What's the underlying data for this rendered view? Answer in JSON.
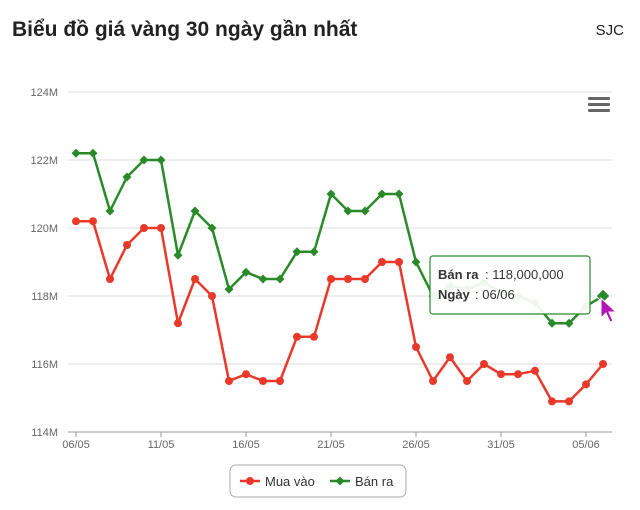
{
  "header": {
    "title": "Biểu đồ giá vàng 30 ngày gần nhất",
    "brand": "SJC"
  },
  "chart_data": {
    "type": "line",
    "categories": [
      "06/05",
      "07/05",
      "08/05",
      "09/05",
      "10/05",
      "11/05",
      "12/05",
      "13/05",
      "14/05",
      "15/05",
      "16/05",
      "17/05",
      "18/05",
      "19/05",
      "20/05",
      "21/05",
      "22/05",
      "23/05",
      "24/05",
      "25/05",
      "26/05",
      "27/05",
      "28/05",
      "29/05",
      "30/05",
      "31/05",
      "01/06",
      "02/06",
      "03/06",
      "04/06",
      "05/06",
      "06/06"
    ],
    "x_tick_labels": [
      "06/05",
      "11/05",
      "16/05",
      "21/05",
      "26/05",
      "31/05",
      "05/06"
    ],
    "y_tick_labels": [
      "114M",
      "116M",
      "118M",
      "120M",
      "122M",
      "124M"
    ],
    "ylim": [
      114,
      124
    ],
    "y_unit": "M",
    "grid": true,
    "legend_position": "bottom-center",
    "series": [
      {
        "name": "Mua vào",
        "color": "#e8392b",
        "marker": "circle",
        "values": [
          120.2,
          120.2,
          118.5,
          119.5,
          120.0,
          120.0,
          117.2,
          118.5,
          118.0,
          115.5,
          115.7,
          115.5,
          115.5,
          116.8,
          116.8,
          118.5,
          118.5,
          118.5,
          119.0,
          119.0,
          116.5,
          115.5,
          116.2,
          115.5,
          116.0,
          115.7,
          115.7,
          115.8,
          114.9,
          114.9,
          115.4,
          116.0
        ]
      },
      {
        "name": "Bán ra",
        "color": "#2a8a2a",
        "marker": "diamond",
        "values": [
          122.2,
          122.2,
          120.5,
          121.5,
          122.0,
          122.0,
          119.2,
          120.5,
          120.0,
          118.2,
          118.7,
          118.5,
          118.5,
          119.3,
          119.3,
          121.0,
          120.5,
          120.5,
          121.0,
          121.0,
          119.0,
          118.0,
          118.3,
          118.2,
          118.4,
          118.1,
          118.0,
          117.8,
          117.2,
          117.2,
          117.7,
          118.0
        ]
      }
    ],
    "tooltip": {
      "series_label": "Bán ra",
      "value_text": "118,000,000",
      "date_label": "Ngày",
      "date_text": "06/06",
      "point_index": 31,
      "border_color": "#2a8a2a"
    }
  }
}
